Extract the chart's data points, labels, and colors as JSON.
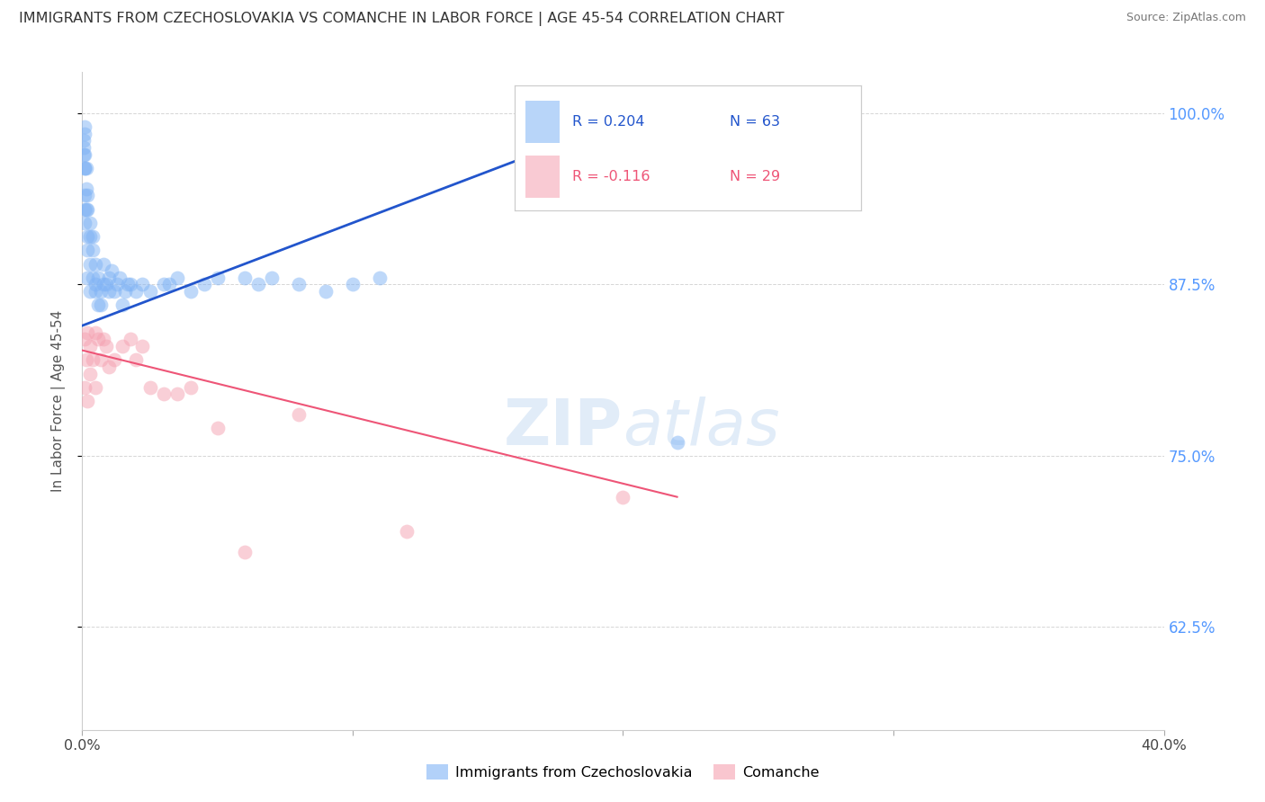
{
  "title": "IMMIGRANTS FROM CZECHOSLOVAKIA VS COMANCHE IN LABOR FORCE | AGE 45-54 CORRELATION CHART",
  "source": "Source: ZipAtlas.com",
  "ylabel": "In Labor Force | Age 45-54",
  "xlim": [
    0.0,
    0.4
  ],
  "ylim": [
    0.55,
    1.03
  ],
  "blue_R": "R = 0.204",
  "blue_N": "N = 63",
  "pink_R": "R = -0.116",
  "pink_N": "N = 29",
  "blue_color": "#7FB3F5",
  "pink_color": "#F5A0B0",
  "blue_line_color": "#2255CC",
  "pink_line_color": "#EE5577",
  "watermark_text": "ZIPAtlas",
  "legend_label_blue": "Immigrants from Czechoslovakia",
  "legend_label_pink": "Comanche",
  "background_color": "#FFFFFF",
  "grid_color": "#CCCCCC",
  "right_axis_color": "#5599FF",
  "blue_x": [
    0.0005,
    0.0006,
    0.0007,
    0.0008,
    0.0009,
    0.001,
    0.001,
    0.001,
    0.001,
    0.001,
    0.001,
    0.0015,
    0.0015,
    0.0015,
    0.002,
    0.002,
    0.002,
    0.002,
    0.002,
    0.003,
    0.003,
    0.003,
    0.003,
    0.004,
    0.004,
    0.004,
    0.005,
    0.005,
    0.005,
    0.006,
    0.006,
    0.007,
    0.007,
    0.008,
    0.008,
    0.009,
    0.01,
    0.01,
    0.011,
    0.012,
    0.013,
    0.014,
    0.015,
    0.016,
    0.017,
    0.018,
    0.02,
    0.022,
    0.025,
    0.03,
    0.032,
    0.035,
    0.04,
    0.045,
    0.05,
    0.06,
    0.065,
    0.07,
    0.08,
    0.09,
    0.1,
    0.11,
    0.22
  ],
  "blue_y": [
    0.97,
    0.98,
    0.975,
    0.99,
    0.96,
    0.97,
    0.985,
    0.96,
    0.94,
    0.93,
    0.92,
    0.945,
    0.96,
    0.93,
    0.94,
    0.91,
    0.88,
    0.9,
    0.93,
    0.91,
    0.89,
    0.87,
    0.92,
    0.9,
    0.88,
    0.91,
    0.875,
    0.89,
    0.87,
    0.88,
    0.86,
    0.87,
    0.86,
    0.875,
    0.89,
    0.875,
    0.88,
    0.87,
    0.885,
    0.87,
    0.875,
    0.88,
    0.86,
    0.87,
    0.875,
    0.875,
    0.87,
    0.875,
    0.87,
    0.875,
    0.875,
    0.88,
    0.87,
    0.875,
    0.88,
    0.88,
    0.875,
    0.88,
    0.875,
    0.87,
    0.875,
    0.88,
    0.76
  ],
  "pink_x": [
    0.001,
    0.001,
    0.0015,
    0.002,
    0.002,
    0.003,
    0.003,
    0.004,
    0.005,
    0.005,
    0.006,
    0.007,
    0.008,
    0.009,
    0.01,
    0.012,
    0.015,
    0.018,
    0.02,
    0.022,
    0.025,
    0.03,
    0.035,
    0.04,
    0.05,
    0.06,
    0.08,
    0.12,
    0.2
  ],
  "pink_y": [
    0.835,
    0.8,
    0.82,
    0.84,
    0.79,
    0.81,
    0.83,
    0.82,
    0.8,
    0.84,
    0.835,
    0.82,
    0.835,
    0.83,
    0.815,
    0.82,
    0.83,
    0.835,
    0.82,
    0.83,
    0.8,
    0.795,
    0.795,
    0.8,
    0.77,
    0.68,
    0.78,
    0.695,
    0.72
  ],
  "blue_trend": [
    0.0,
    0.22,
    0.845,
    1.01
  ],
  "pink_trend": [
    0.0,
    0.22,
    0.827,
    0.72
  ],
  "ytick_positions": [
    0.625,
    0.75,
    0.875,
    1.0
  ],
  "ytick_labels": [
    "62.5%",
    "75.0%",
    "87.5%",
    "100.0%"
  ]
}
